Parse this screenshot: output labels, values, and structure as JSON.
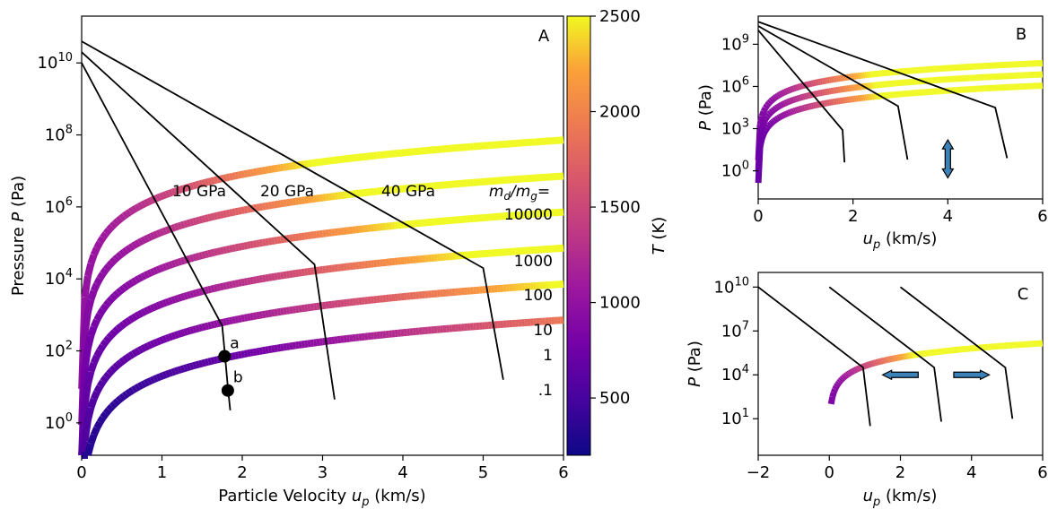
{
  "colorbar": {
    "label": "T (K)",
    "ticks": [
      "500",
      "1000",
      "1500",
      "2000",
      "2500"
    ],
    "tick_values": [
      500,
      1000,
      1500,
      2000,
      2500
    ],
    "range": [
      200,
      2500
    ],
    "colormap": "plasma"
  },
  "chart_data": [
    {
      "panel_label": "A",
      "type": "line",
      "xlabel": "Particle Velocity u_p (km/s)",
      "ylabel": "Pressure P (Pa)",
      "xlim": [
        0,
        6
      ],
      "ylim_log10": [
        -0.9,
        11.3
      ],
      "y_scale": "log",
      "xticks": [
        "0",
        "1",
        "2",
        "3",
        "4",
        "5",
        "6"
      ],
      "yticks": [
        {
          "exp": "0",
          "v": 0
        },
        {
          "exp": "2",
          "v": 2
        },
        {
          "exp": "4",
          "v": 4
        },
        {
          "exp": "6",
          "v": 6
        },
        {
          "exp": "8",
          "v": 8
        },
        {
          "exp": "10",
          "v": 10
        }
      ],
      "hugoniots_log10P": [
        {
          "md_mg": "10000",
          "offset": 0.3
        },
        {
          "md_mg": "1000",
          "offset": -0.7
        },
        {
          "md_mg": "100",
          "offset": -1.7
        },
        {
          "md_mg": "10",
          "offset": -2.7
        },
        {
          "md_mg": "1",
          "offset": -3.7
        },
        {
          "md_mg": ".1",
          "offset": -4.7
        }
      ],
      "hugoniot_form": "log10P = offset + 2*log10(u_p*1000) ; temperature rises with u_p",
      "projectile_lines": [
        {
          "label": "10 GPa",
          "points": [
            [
              0,
              10.0
            ],
            [
              1.75,
              2.7
            ],
            [
              1.78,
              2.0
            ],
            [
              1.82,
              1.0
            ],
            [
              1.85,
              0.35
            ]
          ]
        },
        {
          "label": "20 GPa",
          "points": [
            [
              0,
              10.3
            ],
            [
              2.9,
              4.4
            ],
            [
              3.15,
              0.65
            ]
          ]
        },
        {
          "label": "40 GPa",
          "points": [
            [
              0,
              10.6
            ],
            [
              5.0,
              4.3
            ],
            [
              5.25,
              1.2
            ]
          ]
        }
      ],
      "points": [
        {
          "label": "a",
          "x": 1.78,
          "y_log10": 1.85
        },
        {
          "label": "b",
          "x": 1.82,
          "y_log10": 0.9
        }
      ],
      "md_mg_header": "m_d/m_g=",
      "md_mg_values": [
        "10000",
        "1000",
        "100",
        "10",
        "1",
        ".1"
      ]
    },
    {
      "panel_label": "B",
      "type": "line",
      "xlabel": "u_p (km/s)",
      "ylabel": "P (Pa)",
      "xlim": [
        0,
        6
      ],
      "ylim_log10": [
        -2,
        11
      ],
      "y_scale": "log",
      "xticks": [
        "0",
        "2",
        "4",
        "6"
      ],
      "yticks": [
        {
          "exp": "0",
          "v": 0
        },
        {
          "exp": "3",
          "v": 3
        },
        {
          "exp": "6",
          "v": 6
        },
        {
          "exp": "9",
          "v": 9
        }
      ],
      "projectile_lines": [
        {
          "points": [
            [
              0,
              10.0
            ],
            [
              1.78,
              2.9
            ],
            [
              1.82,
              0.6
            ]
          ]
        },
        {
          "points": [
            [
              0,
              10.3
            ],
            [
              2.95,
              4.6
            ],
            [
              3.15,
              0.8
            ]
          ]
        },
        {
          "points": [
            [
              0,
              10.6
            ],
            [
              5.0,
              4.5
            ],
            [
              5.25,
              0.9
            ]
          ]
        }
      ],
      "hugoniots_log10P": [
        {
          "offset": -5.4
        },
        {
          "offset": -6.2
        },
        {
          "offset": -7.0
        }
      ],
      "arrow": {
        "direction": "vertical",
        "x": 4.0,
        "y_log10": [
          -0.5,
          2.2
        ]
      }
    },
    {
      "panel_label": "C",
      "type": "line",
      "xlabel": "u_p (km/s)",
      "ylabel": "P (Pa)",
      "xlim": [
        -2,
        6
      ],
      "ylim_log10": [
        -1.5,
        11
      ],
      "y_scale": "log",
      "xticks": [
        "−2",
        "0",
        "2",
        "4",
        "6"
      ],
      "yticks": [
        {
          "exp": "1",
          "v": 1
        },
        {
          "exp": "4",
          "v": 4
        },
        {
          "exp": "7",
          "v": 7
        },
        {
          "exp": "10",
          "v": 10
        }
      ],
      "projectile_lines": [
        {
          "points": [
            [
              -2,
              10.0
            ],
            [
              0.95,
              4.5
            ],
            [
              1.15,
              0.5
            ]
          ]
        },
        {
          "points": [
            [
              0,
              10.0
            ],
            [
              2.95,
              4.5
            ],
            [
              3.15,
              0.8
            ]
          ]
        },
        {
          "points": [
            [
              2,
              10.0
            ],
            [
              4.95,
              4.5
            ],
            [
              5.15,
              1.0
            ]
          ]
        }
      ],
      "hugoniots_log10P": [
        {
          "offset": -5.5
        }
      ],
      "arrows": [
        {
          "direction": "left",
          "x": [
            1.5,
            2.5
          ],
          "y_log10": 4.0
        },
        {
          "direction": "right",
          "x": [
            3.5,
            4.5
          ],
          "y_log10": 4.0
        }
      ]
    }
  ]
}
